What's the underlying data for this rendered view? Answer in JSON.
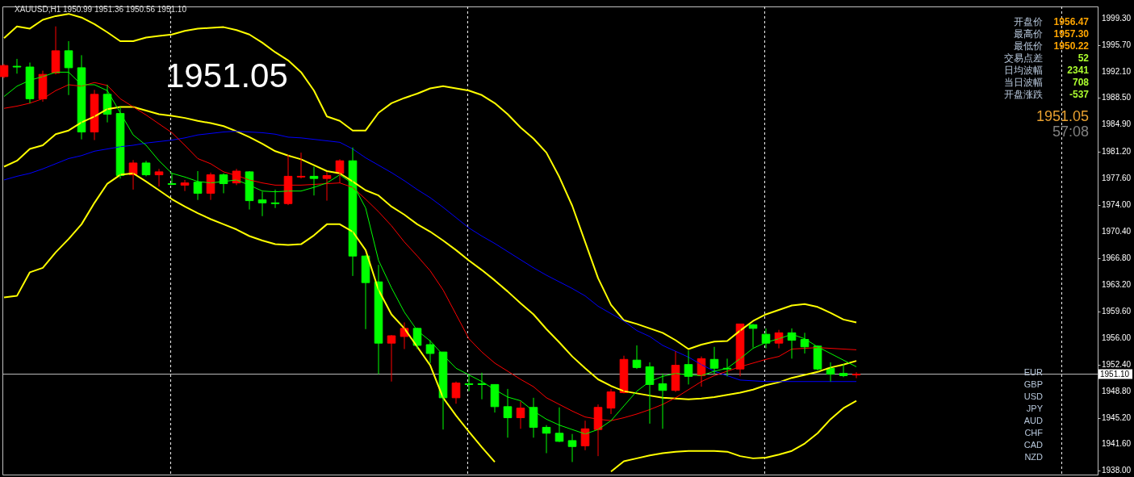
{
  "chart_data": {
    "type": "candlestick",
    "title": "XAUUSD,H1  1950.99 1951.36 1950.56 1951.10",
    "categories": [
      null,
      null,
      null,
      null,
      null,
      null,
      null,
      null,
      null,
      null,
      null,
      null,
      null,
      null,
      null,
      null,
      null,
      null,
      null,
      null,
      null,
      null,
      null,
      null,
      null,
      null,
      null,
      null,
      null,
      null,
      null,
      null,
      null,
      null,
      null,
      null,
      null,
      null,
      null,
      null,
      null,
      null,
      null,
      null,
      null,
      null,
      null,
      null,
      null,
      null,
      null,
      null,
      null,
      null,
      null,
      null,
      null,
      null,
      null,
      null,
      null,
      null,
      null,
      null,
      null,
      null,
      null
    ],
    "ohlc": [
      [
        1991.4,
        1993.1,
        1991.2,
        1992.9
      ],
      [
        1992.8,
        1993.8,
        1991.8,
        1992.7
      ],
      [
        1992.7,
        1993.3,
        1987.8,
        1988.4
      ],
      [
        1988.4,
        1992.2,
        1988.0,
        1991.7
      ],
      [
        1991.9,
        1998.2,
        1991.7,
        1994.9
      ],
      [
        1994.9,
        1996.2,
        1988.9,
        1992.6
      ],
      [
        1992.6,
        1994.3,
        1982.9,
        1983.9
      ],
      [
        1983.9,
        1989.6,
        1982.8,
        1989.0
      ],
      [
        1989.0,
        1990.3,
        1985.2,
        1986.3
      ],
      [
        1986.4,
        1987.3,
        1977.6,
        1978.0
      ],
      [
        1978.1,
        1980.1,
        1976.1,
        1979.7
      ],
      [
        1979.7,
        1980.0,
        1977.9,
        1978.1
      ],
      [
        1978.1,
        1978.9,
        1976.5,
        1978.5
      ],
      [
        1976.9,
        1978.3,
        1976.7,
        1976.8
      ],
      [
        1976.7,
        1977.4,
        1975.9,
        1977.0
      ],
      [
        1977.1,
        1978.6,
        1974.7,
        1975.6
      ],
      [
        1975.6,
        1978.4,
        1974.7,
        1978.1
      ],
      [
        1978.1,
        1978.3,
        1975.6,
        1976.9
      ],
      [
        1977.0,
        1978.9,
        1976.7,
        1978.6
      ],
      [
        1978.5,
        1978.6,
        1973.4,
        1974.6
      ],
      [
        1974.7,
        1975.8,
        1972.5,
        1974.3
      ],
      [
        1974.3,
        1976.1,
        1973.6,
        1974.2
      ],
      [
        1974.2,
        1980.8,
        1974.0,
        1977.9
      ],
      [
        1977.8,
        1981.1,
        1977.6,
        1977.9
      ],
      [
        1977.9,
        1979.2,
        1975.3,
        1977.6
      ],
      [
        1977.6,
        1978.5,
        1974.6,
        1978.0
      ],
      [
        1978.3,
        1980.2,
        1977.0,
        1980.0
      ],
      [
        1980.0,
        1981.8,
        1964.4,
        1967.1
      ],
      [
        1967.1,
        1967.2,
        1957.2,
        1963.5
      ],
      [
        1963.6,
        1965.9,
        1951.1,
        1955.3
      ],
      [
        1955.3,
        1956.4,
        1950.1,
        1956.3
      ],
      [
        1956.2,
        1958.1,
        1954.5,
        1957.3
      ],
      [
        1957.3,
        1957.4,
        1954.5,
        1955.0
      ],
      [
        1955.1,
        1955.7,
        1952.6,
        1953.9
      ],
      [
        1954.1,
        1954.1,
        1943.6,
        1947.9
      ],
      [
        1947.9,
        1950.1,
        1947.1,
        1949.9
      ],
      [
        1949.8,
        1951.0,
        1948.8,
        1949.7
      ],
      [
        1949.8,
        1951.3,
        1947.7,
        1949.7
      ],
      [
        1949.7,
        1949.7,
        1945.9,
        1946.7
      ],
      [
        1946.7,
        1949.1,
        1942.5,
        1945.2
      ],
      [
        1945.2,
        1947.4,
        1943.7,
        1946.5
      ],
      [
        1946.6,
        1947.9,
        1942.5,
        1943.9
      ],
      [
        1943.9,
        1944.2,
        1940.4,
        1943.1
      ],
      [
        1943.1,
        1946.6,
        1941.9,
        1942.0
      ],
      [
        1942.1,
        1943.0,
        1939.2,
        1941.3
      ],
      [
        1941.4,
        1944.8,
        1940.8,
        1943.7
      ],
      [
        1943.6,
        1947.0,
        1940.0,
        1946.6
      ],
      [
        1946.5,
        1949.1,
        1945.7,
        1948.7
      ],
      [
        1948.6,
        1953.6,
        1948.5,
        1953.1
      ],
      [
        1953.0,
        1955.0,
        1951.8,
        1952.0
      ],
      [
        1952.1,
        1952.7,
        1944.4,
        1949.7
      ],
      [
        1949.8,
        1951.2,
        1943.7,
        1948.9
      ],
      [
        1948.9,
        1954.2,
        1948.7,
        1952.3
      ],
      [
        1952.4,
        1954.3,
        1949.7,
        1950.8
      ],
      [
        1950.9,
        1953.5,
        1949.4,
        1953.2
      ],
      [
        1953.1,
        1954.8,
        1951.1,
        1951.9
      ],
      [
        1951.9,
        1953.2,
        1950.8,
        1951.8
      ],
      [
        1951.8,
        1957.9,
        1950.8,
        1957.9
      ],
      [
        1957.8,
        1957.9,
        1954.7,
        1957.3
      ],
      [
        1956.5,
        1957.3,
        1954.6,
        1955.3
      ],
      [
        1955.3,
        1957.1,
        1954.6,
        1956.7
      ],
      [
        1956.7,
        1957.3,
        1953.2,
        1955.7
      ],
      [
        1955.8,
        1956.7,
        1953.9,
        1954.8
      ],
      [
        1954.9,
        1955.0,
        1951.6,
        1951.8
      ],
      [
        1951.9,
        1952.7,
        1950.1,
        1951.1
      ],
      [
        1951.2,
        1952.5,
        1950.7,
        1950.9
      ],
      [
        1950.99,
        1951.36,
        1950.56,
        1951.1
      ]
    ],
    "colors": [
      "#ff0000",
      "#00ff00",
      "#00ff00",
      "#ff0000",
      "#ff0000",
      "#00ff00",
      "#00ff00",
      "#ff0000",
      "#00ff00",
      "#00ff00",
      "#ff0000",
      "#00ff00",
      "#ff0000",
      "#00ff00",
      "#ff0000",
      "#00ff00",
      "#ff0000",
      "#00ff00",
      "#ff0000",
      "#00ff00",
      "#00ff00",
      "#00ff00",
      "#ff0000",
      "#ff0000",
      "#00ff00",
      "#ff0000",
      "#ff0000",
      "#00ff00",
      "#00ff00",
      "#00ff00",
      "#ff0000",
      "#ff0000",
      "#00ff00",
      "#00ff00",
      "#00ff00",
      "#ff0000",
      "#00ff00",
      "#00ff00",
      "#00ff00",
      "#00ff00",
      "#ff0000",
      "#00ff00",
      "#00ff00",
      "#00ff00",
      "#00ff00",
      "#ff0000",
      "#ff0000",
      "#ff0000",
      "#ff0000",
      "#00ff00",
      "#00ff00",
      "#00ff00",
      "#ff0000",
      "#00ff00",
      "#ff0000",
      "#00ff00",
      "#00ff00",
      "#ff0000",
      "#00ff00",
      "#00ff00",
      "#ff0000",
      "#00ff00",
      "#00ff00",
      "#00ff00",
      "#00ff00",
      "#00ff00",
      "#ff0000"
    ],
    "series": [
      {
        "type": "line",
        "color": "#ffff00",
        "values": [
          1996.6,
          1998.2,
          1997.9,
          1999.1,
          1999.6,
          1999.9,
          1999.4,
          1998.5,
          1997.4,
          1996.2,
          1996.2,
          1996.7,
          1996.9,
          1997.1,
          1997.6,
          1997.9,
          1998.0,
          1998.1,
          1997.7,
          1997.1,
          1996.0,
          1994.7,
          1993.6,
          1992.0,
          1989.5,
          1986.0,
          1985.4,
          1984.1,
          1984.1,
          1986.5,
          1987.8,
          1988.5,
          1989.1,
          1989.8,
          1990.1,
          1989.8,
          1989.5,
          1988.9,
          1987.8,
          1986.3,
          1984.5,
          1983.0,
          1981.1,
          1977.8,
          1973.9,
          1969.0,
          1964.1,
          1960.5,
          1958.4,
          1957.9,
          1957.3,
          1956.7,
          1955.7,
          1954.5,
          1955.1,
          1955.5,
          1955.6,
          1957.0,
          1958.3,
          1959.2,
          1959.8,
          1960.4,
          1960.6,
          1960.2,
          1959.4,
          1958.5,
          1958.1
        ]
      },
      {
        "type": "line",
        "color": "#ffff00",
        "values": [
          1979.2,
          1980.0,
          1981.6,
          1982.1,
          1983.6,
          1984.1,
          1985.2,
          1986.0,
          1987.0,
          1987.3,
          1987.3,
          1986.8,
          1986.3,
          1986.1,
          1985.8,
          1985.4,
          1985.1,
          1984.7,
          1984.0,
          1983.2,
          1982.3,
          1981.3,
          1980.7,
          1980.2,
          1979.4,
          1978.6,
          1978.3,
          1977.2,
          1976.0,
          1975.3,
          1973.8,
          1972.7,
          1971.4,
          1970.4,
          1969.2,
          1967.9,
          1966.5,
          1965.2,
          1963.8,
          1962.3,
          1960.7,
          1959.2,
          1957.2,
          1955.4,
          1953.5,
          1951.9,
          1950.4,
          1949.5,
          1948.8,
          1948.5,
          1948.2,
          1947.9,
          1947.8,
          1947.7,
          1947.8,
          1948.0,
          1948.3,
          1948.6,
          1949.0,
          1949.6,
          1950.0,
          1950.6,
          1951.0,
          1951.4,
          1952.0,
          1952.4,
          1952.9
        ]
      },
      {
        "type": "line",
        "color": "#ffff00",
        "values": [
          1961.5,
          1961.7,
          1964.9,
          1965.5,
          1967.6,
          1969.4,
          1971.4,
          1974.3,
          1976.9,
          1978.1,
          1978.3,
          1977.2,
          1976.0,
          1974.8,
          1973.8,
          1972.9,
          1972.1,
          1971.4,
          1970.7,
          1969.8,
          1969.2,
          1968.7,
          1968.6,
          1968.7,
          1969.9,
          1971.4,
          1971.4,
          1970.4,
          1967.9,
          1962.5,
          1959.2,
          1957.3,
          1954.8,
          1952.3,
          1947.9,
          1945.5,
          1943.3,
          1941.2,
          1939.2,
          null,
          null,
          null,
          null,
          null,
          null,
          null,
          null,
          1937.9,
          1939.3,
          1939.7,
          1940.1,
          1940.4,
          1940.6,
          1940.7,
          1940.7,
          1940.7,
          1940.6,
          1940.0,
          1939.7,
          1939.8,
          1940.2,
          1940.7,
          1941.7,
          1943.1,
          1945.0,
          1946.5,
          1947.5
        ]
      },
      {
        "type": "line",
        "color": "#0000ff",
        "values": [
          1977.4,
          1977.9,
          1978.3,
          1978.9,
          1979.6,
          1980.3,
          1980.7,
          1981.3,
          1981.6,
          1981.9,
          1982.1,
          1982.4,
          1982.6,
          1982.8,
          1983.1,
          1983.5,
          1983.7,
          1983.9,
          1984.0,
          1983.9,
          1983.8,
          1983.6,
          1983.2,
          1983.1,
          1982.9,
          1982.7,
          1982.5,
          1981.6,
          1980.4,
          1979.4,
          1978.4,
          1977.3,
          1976.1,
          1975.0,
          1973.7,
          1972.3,
          1970.9,
          1969.8,
          1968.8,
          1967.7,
          1966.6,
          1965.5,
          1964.5,
          1963.6,
          1962.7,
          1961.7,
          1960.3,
          1959.3,
          1958.3,
          1957.0,
          1956.2,
          1955.0,
          1954.2,
          1953.4,
          1952.4,
          1951.5,
          1950.9,
          1950.3,
          1950.2,
          1950.1,
          1950.1,
          1950.1,
          1950.1,
          1950.1,
          1950.1,
          1950.1,
          1950.1
        ]
      },
      {
        "type": "line",
        "color": "#ff0000",
        "values": [
          1987.1,
          1987.4,
          1987.8,
          1988.4,
          1989.5,
          1990.3,
          1990.1,
          1990.6,
          1990.2,
          1988.4,
          1987.3,
          1986.2,
          1985.0,
          1983.8,
          1982.1,
          1980.3,
          1979.6,
          1978.5,
          1978.0,
          1977.4,
          1977.0,
          1976.7,
          1976.7,
          1976.7,
          1976.8,
          1976.9,
          1977.0,
          1976.4,
          1974.8,
          1973.1,
          1971.2,
          1969.0,
          1967.1,
          1965.1,
          1962.5,
          1959.2,
          1955.9,
          1954.1,
          1952.6,
          1951.5,
          1950.4,
          1949.4,
          1947.9,
          1947.0,
          1946.1,
          1945.3,
          1945.0,
          1944.8,
          1945.2,
          1945.7,
          1946.3,
          1947.0,
          1947.9,
          1949.0,
          1950.1,
          1950.9,
          1951.5,
          1952.1,
          1952.6,
          1953.1,
          1953.5,
          1954.5,
          1954.6,
          1954.7,
          1954.6,
          1954.5,
          1954.4
        ]
      },
      {
        "type": "line",
        "color": "#00ff00",
        "values": [
          1988.7,
          1990.1,
          1990.9,
          1991.4,
          1992.0,
          1992.0,
          1990.3,
          1990.3,
          1989.5,
          1986.5,
          1983.5,
          1982.1,
          1980.0,
          1978.3,
          1977.8,
          1977.2,
          1977.0,
          1977.2,
          1977.4,
          1976.7,
          1975.9,
          1975.8,
          1975.9,
          1975.9,
          1976.4,
          1977.0,
          1978.1,
          1976.9,
          1973.6,
          1966.5,
          1962.8,
          1959.5,
          1957.0,
          1955.6,
          1953.7,
          1951.9,
          1951.0,
          1950.1,
          1949.0,
          1948.0,
          1947.5,
          1946.1,
          1945.0,
          1944.2,
          1943.6,
          1943.0,
          1943.6,
          1944.8,
          1946.8,
          1948.8,
          1950.1,
          1950.8,
          1951.2,
          1951.0,
          1950.9,
          1951.5,
          1951.9,
          1953.2,
          1954.6,
          1955.4,
          1955.9,
          1956.5,
          1955.9,
          1954.8,
          1953.9,
          1953.0,
          1952.1
        ]
      }
    ],
    "ylim": [
      1937.5,
      2000.9
    ],
    "yticks": [
      {
        "value": 1999.3,
        "label": "1999.30"
      },
      {
        "value": 1995.7,
        "label": "1995.70"
      },
      {
        "value": 1992.1,
        "label": "1992.10"
      },
      {
        "value": 1988.5,
        "label": "1988.50"
      },
      {
        "value": 1984.9,
        "label": "1984.90"
      },
      {
        "value": 1981.2,
        "label": "1981.20"
      },
      {
        "value": 1977.6,
        "label": "1977.60"
      },
      {
        "value": 1974.0,
        "label": "1974.00"
      },
      {
        "value": 1970.4,
        "label": "1970.40"
      },
      {
        "value": 1966.8,
        "label": "1966.80"
      },
      {
        "value": 1963.2,
        "label": "1963.20"
      },
      {
        "value": 1959.6,
        "label": "1959.60"
      },
      {
        "value": 1956.0,
        "label": "1956.00"
      },
      {
        "value": 1952.4,
        "label": "1952.40"
      },
      {
        "value": 1948.8,
        "label": "1948.80"
      },
      {
        "value": 1945.2,
        "label": "1945.20"
      },
      {
        "value": 1941.6,
        "label": "1941.60"
      },
      {
        "value": 1938.0,
        "label": "1938.00"
      }
    ],
    "tick_labels": "y",
    "grid": "x",
    "ref_lines": [
      {
        "axis": "y",
        "value": 1951.1,
        "label": "1951.10",
        "color": "#c0c0c0"
      }
    ],
    "annotations": [
      "1951.05",
      "开盘价",
      "1956.47",
      "最高价",
      "1957.30",
      "最低价",
      "1950.22",
      "交易点差",
      "52",
      "日均波幅",
      "2341",
      "当日波幅",
      "708",
      "开盘涨跌",
      "-537",
      "1951.05",
      "57:08",
      "EUR",
      "GBP",
      "USD",
      "JPY",
      "AUD",
      "CHF",
      "CAD",
      "NZD"
    ]
  }
}
